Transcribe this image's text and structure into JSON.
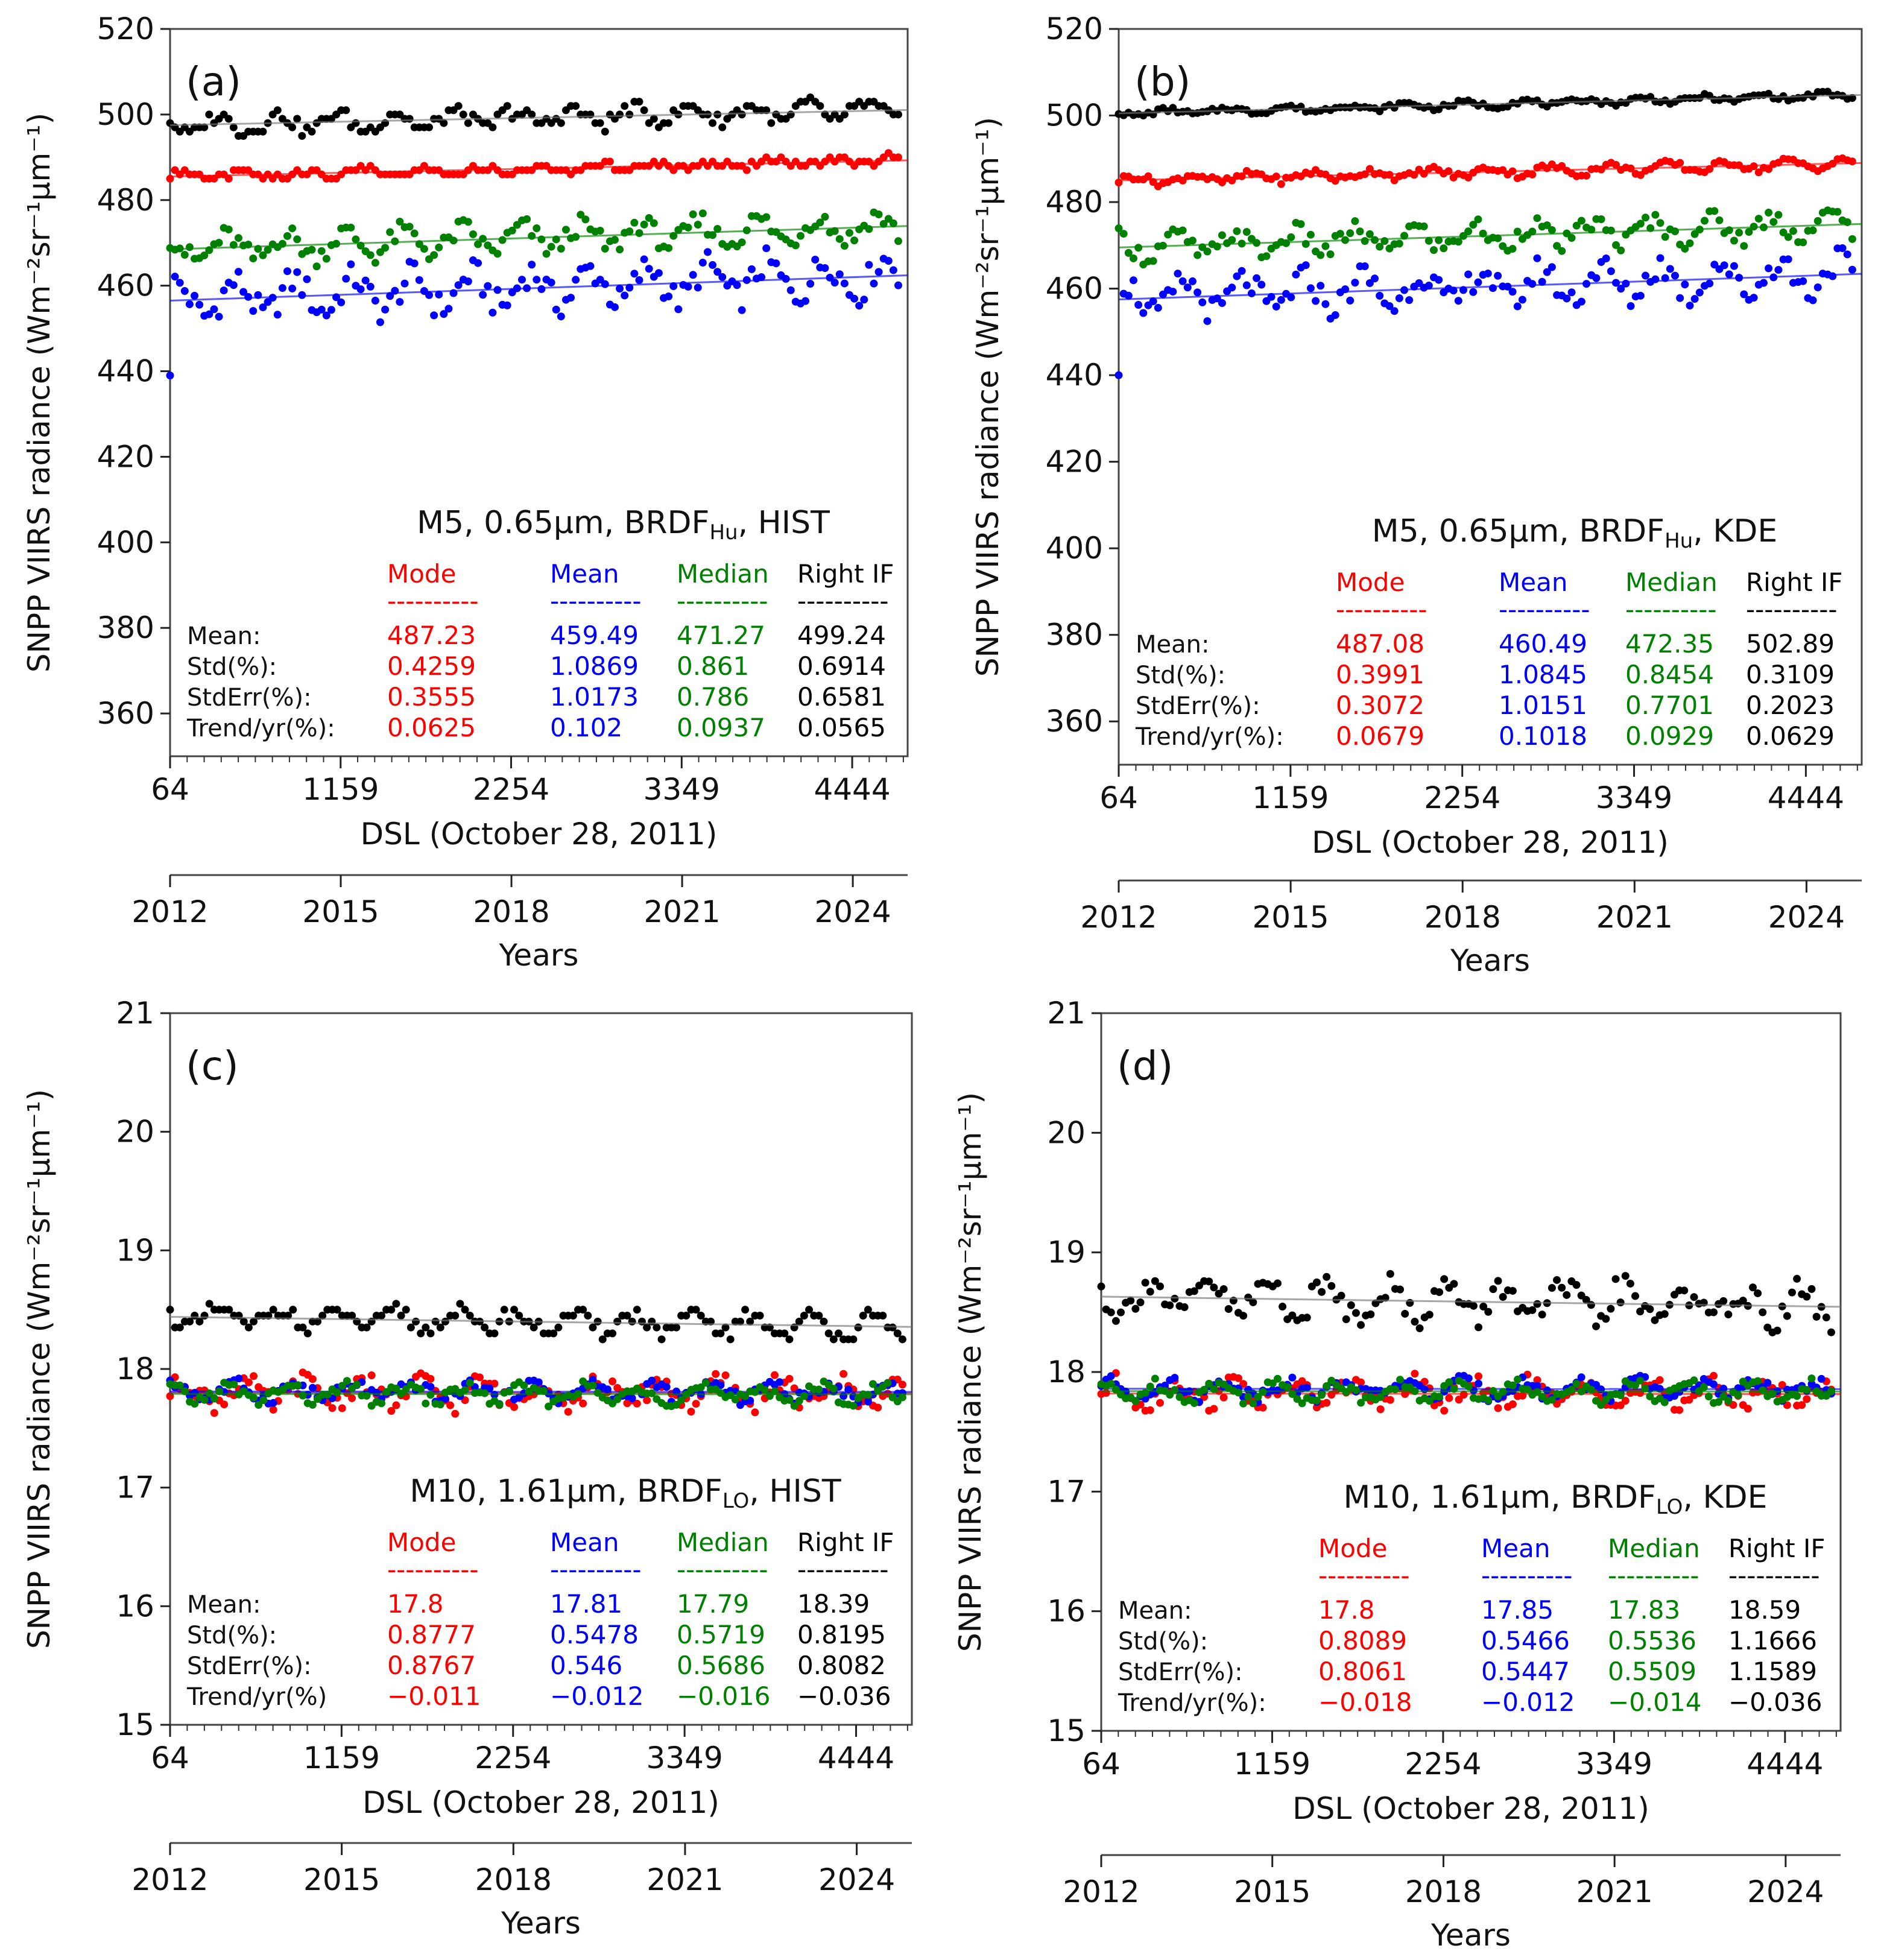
{
  "figure": {
    "ylabel": "SNPP VIIRS radiance (Wm⁻²sr⁻¹μm⁻¹)",
    "xlabel_dsl": "DSL (October 28, 2011)",
    "xlabel_years": "Years",
    "dsl_ticks": [
      "64",
      "1159",
      "2254",
      "3349",
      "4444"
    ],
    "year_ticks": [
      "2012",
      "2015",
      "2018",
      "2021",
      "2024"
    ],
    "stat_headers": [
      "Mode",
      "Mean",
      "Median",
      "Right IF"
    ],
    "stat_rows": [
      "Mean:",
      "Std(%):",
      "StdErr(%):",
      "Trend/yr(%):"
    ],
    "stat_rows_c": [
      "Mean:",
      "Std(%):",
      "StdErr(%):",
      "Trend/yr(%)"
    ],
    "dashes": "----------",
    "colors": {
      "mode": "#ff0000",
      "mean": "#0000ff",
      "median": "#008000",
      "right_if": "#000000"
    }
  },
  "chart_data": [
    {
      "type": "scatter",
      "panel": "(a)",
      "title_main": "M5, 0.65μm, BRDF",
      "title_sub": "Hu",
      "title_tail": ", HIST",
      "ylim": [
        350,
        520
      ],
      "yticks": [
        "360",
        "380",
        "400",
        "420",
        "440",
        "460",
        "480",
        "500",
        "520"
      ],
      "xlim": [
        64,
        4800
      ],
      "series": [
        {
          "name": "Mode",
          "base": 485.5,
          "trend_per_day": 0.0008,
          "amp": 1.4,
          "step": 1.0
        },
        {
          "name": "Mean",
          "base": 456.5,
          "trend_per_day": 0.00125,
          "amp": 6.5,
          "step": 0
        },
        {
          "name": "Median",
          "base": 468.5,
          "trend_per_day": 0.00115,
          "amp": 4.5,
          "step": 0
        },
        {
          "name": "Right IF",
          "base": 497.5,
          "trend_per_day": 0.00075,
          "amp": 3.0,
          "step": 1.0
        }
      ],
      "stats": [
        [
          "487.23",
          "459.49",
          "471.27",
          "499.24"
        ],
        [
          "0.4259",
          "1.0869",
          "0.861",
          "0.6914"
        ],
        [
          "0.3555",
          "1.0173",
          "0.786",
          "0.6581"
        ],
        [
          "0.0625",
          "0.102",
          "0.0937",
          "0.0565"
        ]
      ]
    },
    {
      "type": "scatter",
      "panel": "(b)",
      "title_main": "M5, 0.65μm, BRDF",
      "title_sub": "Hu",
      "title_tail": ", KDE",
      "ylim": [
        350,
        520
      ],
      "yticks": [
        "360",
        "380",
        "400",
        "420",
        "440",
        "460",
        "480",
        "500",
        "520"
      ],
      "xlim": [
        64,
        4800
      ],
      "series": [
        {
          "name": "Mode",
          "base": 485.0,
          "trend_per_day": 0.00085,
          "amp": 1.5,
          "step": 0
        },
        {
          "name": "Mean",
          "base": 457.5,
          "trend_per_day": 0.00125,
          "amp": 6.0,
          "step": 0
        },
        {
          "name": "Median",
          "base": 469.5,
          "trend_per_day": 0.00115,
          "amp": 4.0,
          "step": 0
        },
        {
          "name": "Right IF",
          "base": 500.5,
          "trend_per_day": 0.0009,
          "amp": 1.0,
          "step": 0
        }
      ],
      "stats": [
        [
          "487.08",
          "460.49",
          "472.35",
          "502.89"
        ],
        [
          "0.3991",
          "1.0845",
          "0.8454",
          "0.3109"
        ],
        [
          "0.3072",
          "1.0151",
          "0.7701",
          "0.2023"
        ],
        [
          "0.0679",
          "0.1018",
          "0.0929",
          "0.0629"
        ]
      ]
    },
    {
      "type": "scatter",
      "panel": "(c)",
      "title_main": "M10, 1.61μm, BRDF",
      "title_sub": "LO",
      "title_tail": ", HIST",
      "ylim": [
        15,
        21
      ],
      "yticks": [
        "15",
        "16",
        "17",
        "18",
        "19",
        "20",
        "21"
      ],
      "xlim": [
        64,
        4800
      ],
      "series": [
        {
          "name": "Mode",
          "base": 17.8,
          "trend_per_day": -5e-07,
          "amp": 0.16,
          "step": 0
        },
        {
          "name": "Mean",
          "base": 17.81,
          "trend_per_day": -6e-07,
          "amp": 0.1,
          "step": 0
        },
        {
          "name": "Median",
          "base": 17.79,
          "trend_per_day": -8e-07,
          "amp": 0.1,
          "step": 0
        },
        {
          "name": "Right IF",
          "base": 18.44,
          "trend_per_day": -1.8e-05,
          "amp": 0.12,
          "step": 0.05
        }
      ],
      "stats": [
        [
          "17.8",
          "17.81",
          "17.79",
          "18.39"
        ],
        [
          "0.8777",
          "0.5478",
          "0.5719",
          "0.8195"
        ],
        [
          "0.8767",
          "0.546",
          "0.5686",
          "0.8082"
        ],
        [
          "−0.011",
          "−0.012",
          "−0.016",
          "−0.036"
        ]
      ]
    },
    {
      "type": "scatter",
      "panel": "(d)",
      "title_main": "M10, 1.61μm, BRDF",
      "title_sub": "LO",
      "title_tail": ", KDE",
      "ylim": [
        15,
        21
      ],
      "yticks": [
        "15",
        "16",
        "17",
        "18",
        "19",
        "20",
        "21"
      ],
      "xlim": [
        64,
        4800
      ],
      "series": [
        {
          "name": "Mode",
          "base": 17.82,
          "trend_per_day": -9e-07,
          "amp": 0.15,
          "step": 0
        },
        {
          "name": "Mean",
          "base": 17.86,
          "trend_per_day": -6e-07,
          "amp": 0.1,
          "step": 0
        },
        {
          "name": "Median",
          "base": 17.84,
          "trend_per_day": -7e-07,
          "amp": 0.1,
          "step": 0
        },
        {
          "name": "Right IF",
          "base": 18.63,
          "trend_per_day": -1.8e-05,
          "amp": 0.22,
          "step": 0
        }
      ],
      "stats": [
        [
          "17.8",
          "17.85",
          "17.83",
          "18.59"
        ],
        [
          "0.8089",
          "0.5466",
          "0.5536",
          "1.1666"
        ],
        [
          "0.8061",
          "0.5447",
          "0.5509",
          "1.1589"
        ],
        [
          "−0.018",
          "−0.012",
          "−0.014",
          "−0.036"
        ]
      ]
    }
  ]
}
